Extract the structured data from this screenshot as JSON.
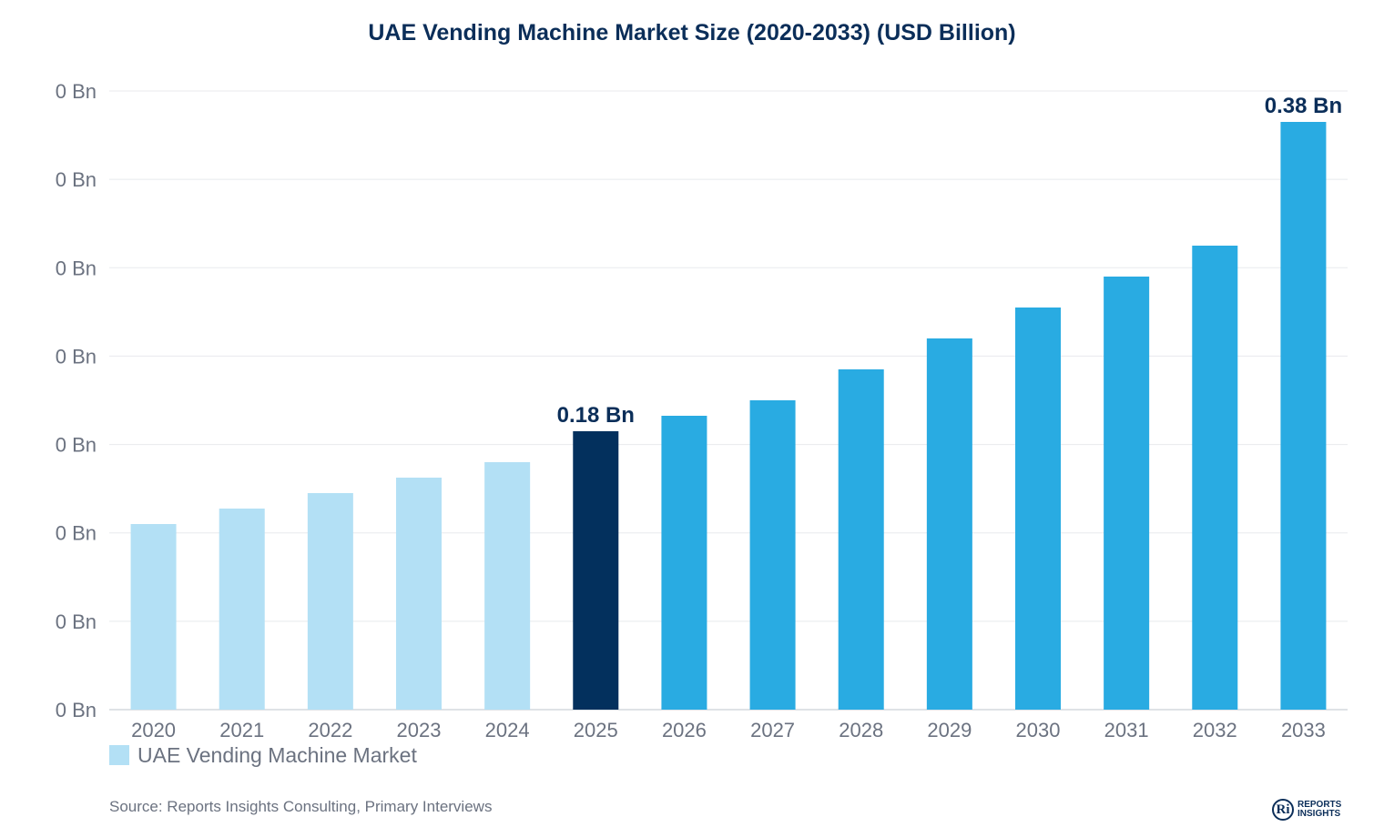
{
  "chart_data": {
    "type": "bar",
    "title": "UAE Vending Machine Market Size (2020-2033) (USD Billion)",
    "xlabel": "",
    "ylabel": "",
    "categories": [
      "2020",
      "2021",
      "2022",
      "2023",
      "2024",
      "2025",
      "2026",
      "2027",
      "2028",
      "2029",
      "2030",
      "2031",
      "2032",
      "2033"
    ],
    "series": [
      {
        "name": "UAE Vending Machine Market",
        "values": [
          0.12,
          0.13,
          0.14,
          0.15,
          0.16,
          0.18,
          0.19,
          0.2,
          0.22,
          0.24,
          0.26,
          0.28,
          0.3,
          0.38
        ]
      }
    ],
    "bar_colors": [
      "#b3e0f5",
      "#b3e0f5",
      "#b3e0f5",
      "#b3e0f5",
      "#b3e0f5",
      "#03305d",
      "#29abe2",
      "#29abe2",
      "#29abe2",
      "#29abe2",
      "#29abe2",
      "#29abe2",
      "#29abe2",
      "#29abe2"
    ],
    "data_labels": [
      {
        "category": "2025",
        "text": "0.18 Bn"
      },
      {
        "category": "2033",
        "text": "0.38 Bn"
      }
    ],
    "y_tick_labels": [
      "0 Bn",
      "0 Bn",
      "0 Bn",
      "0 Bn",
      "0 Bn",
      "0 Bn",
      "0 Bn",
      "0 Bn"
    ],
    "ylim": [
      0,
      0.4
    ],
    "grid": true,
    "legend_position": "bottom-left"
  },
  "legend": {
    "label": "UAE Vending Machine Market",
    "color": "#b3e0f5"
  },
  "source": "Source: Reports Insights Consulting, Primary Interviews",
  "logo": {
    "line1": "REPORTS",
    "line2": "INSIGHTS",
    "mark": "Ri"
  }
}
